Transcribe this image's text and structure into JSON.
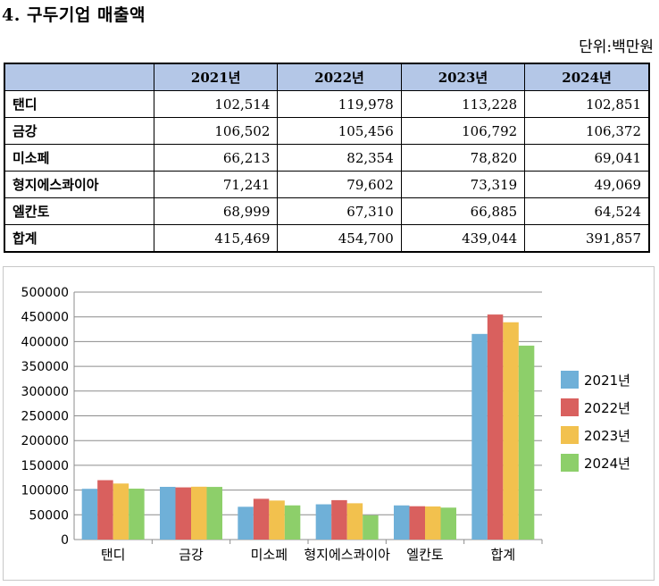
{
  "title": "4. 구두기업 매출액",
  "unit": "단위:백만원",
  "table": {
    "headers": [
      "",
      "2021년",
      "2022년",
      "2023년",
      "2024년"
    ],
    "rows": [
      {
        "name": "탠디",
        "values": [
          "102,514",
          "119,978",
          "113,228",
          "102,851"
        ]
      },
      {
        "name": "금강",
        "values": [
          "106,502",
          "105,456",
          "106,792",
          "106,372"
        ]
      },
      {
        "name": "미소페",
        "values": [
          "66,213",
          "82,354",
          "78,820",
          "69,041"
        ]
      },
      {
        "name": "형지에스콰이아",
        "values": [
          "71,241",
          "79,602",
          "73,319",
          "49,069"
        ]
      },
      {
        "name": "엘칸토",
        "values": [
          "68,999",
          "67,310",
          "66,885",
          "64,524"
        ]
      },
      {
        "name": "합계",
        "values": [
          "415,469",
          "454,700",
          "439,044",
          "391,857"
        ]
      }
    ]
  },
  "chart_data": {
    "type": "bar",
    "categories": [
      "탠디",
      "금강",
      "미소페",
      "형지에스콰이아",
      "엘칸토",
      "합계"
    ],
    "series": [
      {
        "name": "2021년",
        "color": "#6fb0d8",
        "values": [
          102514,
          106502,
          66213,
          71241,
          68999,
          415469
        ]
      },
      {
        "name": "2022년",
        "color": "#d9605e",
        "values": [
          119978,
          105456,
          82354,
          79602,
          67310,
          454700
        ]
      },
      {
        "name": "2023년",
        "color": "#f2c14e",
        "values": [
          113228,
          106792,
          78820,
          73319,
          66885,
          439044
        ]
      },
      {
        "name": "2024년",
        "color": "#8dcf6a",
        "values": [
          102851,
          106372,
          69041,
          49069,
          64524,
          391857
        ]
      }
    ],
    "ylim": [
      0,
      500000
    ],
    "yticks": [
      0,
      50000,
      100000,
      150000,
      200000,
      250000,
      300000,
      350000,
      400000,
      450000,
      500000
    ],
    "ytick_labels": [
      "0",
      "50000",
      "100000",
      "150000",
      "200000",
      "250000",
      "300000",
      "350000",
      "400000",
      "450000",
      "500000"
    ],
    "grid": true,
    "legend": "right"
  }
}
